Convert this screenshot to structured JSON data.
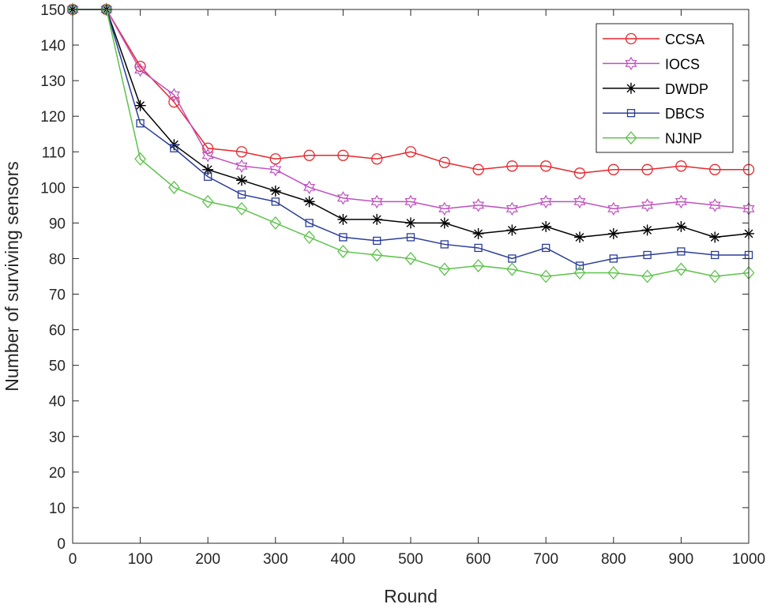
{
  "chart_data": {
    "type": "line",
    "title": "",
    "xlabel": "Round",
    "ylabel": "Number of surviving sensors",
    "xlim": [
      0,
      1000
    ],
    "ylim": [
      0,
      150
    ],
    "xticks": [
      0,
      100,
      200,
      300,
      400,
      500,
      600,
      700,
      800,
      900,
      1000
    ],
    "yticks": [
      0,
      10,
      20,
      30,
      40,
      50,
      60,
      70,
      80,
      90,
      100,
      110,
      120,
      130,
      140,
      150
    ],
    "grid": false,
    "legend_position": "top-right",
    "x": [
      0,
      50,
      100,
      150,
      200,
      250,
      300,
      350,
      400,
      450,
      500,
      550,
      600,
      650,
      700,
      750,
      800,
      850,
      900,
      950,
      1000
    ],
    "series": [
      {
        "name": "CCSA",
        "color": "#e8262b",
        "marker": "circle",
        "values": [
          150,
          150,
          134,
          124,
          111,
          110,
          108,
          109,
          109,
          108,
          110,
          107,
          105,
          106,
          106,
          104,
          105,
          105,
          106,
          105,
          105
        ]
      },
      {
        "name": "IOCS",
        "color": "#c050c0",
        "marker": "hexagram",
        "values": [
          150,
          150,
          133,
          126,
          109,
          106,
          105,
          100,
          97,
          96,
          96,
          94,
          95,
          94,
          96,
          96,
          94,
          95,
          96,
          95,
          94
        ]
      },
      {
        "name": "DWDP",
        "color": "#000000",
        "marker": "asterisk",
        "values": [
          150,
          150,
          123,
          112,
          105,
          102,
          99,
          96,
          91,
          91,
          90,
          90,
          87,
          88,
          89,
          86,
          87,
          88,
          89,
          86,
          87
        ]
      },
      {
        "name": "DBCS",
        "color": "#2b3d9a",
        "marker": "square",
        "values": [
          150,
          150,
          118,
          111,
          103,
          98,
          96,
          90,
          86,
          85,
          86,
          84,
          83,
          80,
          83,
          78,
          80,
          81,
          82,
          81,
          81
        ]
      },
      {
        "name": "NJNP",
        "color": "#5cc34a",
        "marker": "diamond",
        "values": [
          150,
          150,
          108,
          100,
          96,
          94,
          90,
          86,
          82,
          81,
          80,
          77,
          78,
          77,
          75,
          76,
          76,
          75,
          77,
          75,
          76
        ]
      }
    ]
  }
}
